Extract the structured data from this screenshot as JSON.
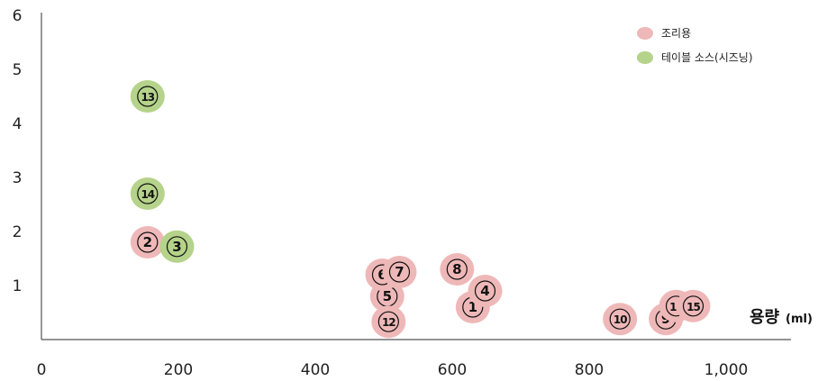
{
  "chart_data": {
    "type": "scatter",
    "xlabel": "용량",
    "xunit": "(ml)",
    "xlim": [
      0,
      1100
    ],
    "ylim": [
      0,
      6
    ],
    "x_ticks": [
      {
        "value": 0,
        "label": "0"
      },
      {
        "value": 200,
        "label": "200"
      },
      {
        "value": 400,
        "label": "400"
      },
      {
        "value": 600,
        "label": "600"
      },
      {
        "value": 800,
        "label": "800"
      },
      {
        "value": 1000,
        "label": "1,000"
      }
    ],
    "y_ticks": [
      {
        "value": 1,
        "label": "1"
      },
      {
        "value": 2,
        "label": "2"
      },
      {
        "value": 3,
        "label": "3"
      },
      {
        "value": 4,
        "label": "4"
      },
      {
        "value": 5,
        "label": "5"
      },
      {
        "value": 6,
        "label": "6"
      }
    ],
    "legend_position": "top-right",
    "series": [
      {
        "name": "조리용",
        "color": "#efb8b8",
        "points": [
          {
            "id": "1",
            "x": 630,
            "y": 0.6
          },
          {
            "id": "2",
            "x": 155,
            "y": 1.8
          },
          {
            "id": "4",
            "x": 648,
            "y": 0.9
          },
          {
            "id": "5",
            "x": 505,
            "y": 0.8
          },
          {
            "id": "6",
            "x": 498,
            "y": 1.2
          },
          {
            "id": "7",
            "x": 523,
            "y": 1.25
          },
          {
            "id": "8",
            "x": 607,
            "y": 1.3
          },
          {
            "id": "9",
            "x": 912,
            "y": 0.38
          },
          {
            "id": "10",
            "x": 845,
            "y": 0.38
          },
          {
            "id": "11",
            "x": 927,
            "y": 0.62
          },
          {
            "id": "12",
            "x": 507,
            "y": 0.33
          },
          {
            "id": "15",
            "x": 952,
            "y": 0.62
          }
        ]
      },
      {
        "name": "테이블 소스(시즈닝)",
        "color": "#b5d38a",
        "points": [
          {
            "id": "3",
            "x": 198,
            "y": 1.72
          },
          {
            "id": "13",
            "x": 155,
            "y": 4.5
          },
          {
            "id": "14",
            "x": 155,
            "y": 2.7
          }
        ]
      }
    ]
  }
}
